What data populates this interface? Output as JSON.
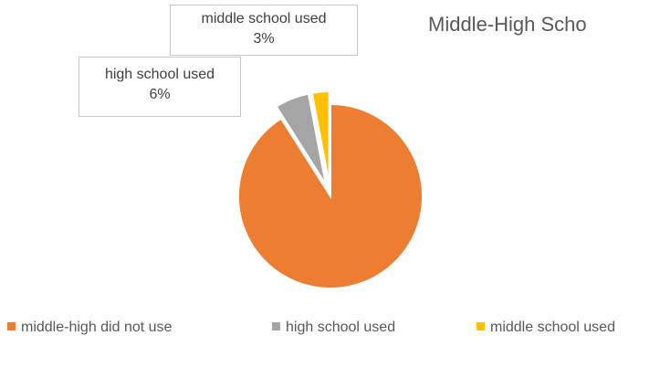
{
  "chart_data": {
    "type": "pie",
    "title": "Middle-High Scho",
    "categories": [
      "middle-high did not use",
      "high school used",
      "middle school used"
    ],
    "values": [
      91,
      6,
      3
    ],
    "colors": [
      "#ED7D31",
      "#A5A5A5",
      "#FFC000"
    ],
    "legend": {
      "position": "bottom"
    },
    "data_labels": [
      {
        "category": "middle school used",
        "text": "3%"
      },
      {
        "category": "high school used",
        "text": "6%"
      }
    ]
  }
}
